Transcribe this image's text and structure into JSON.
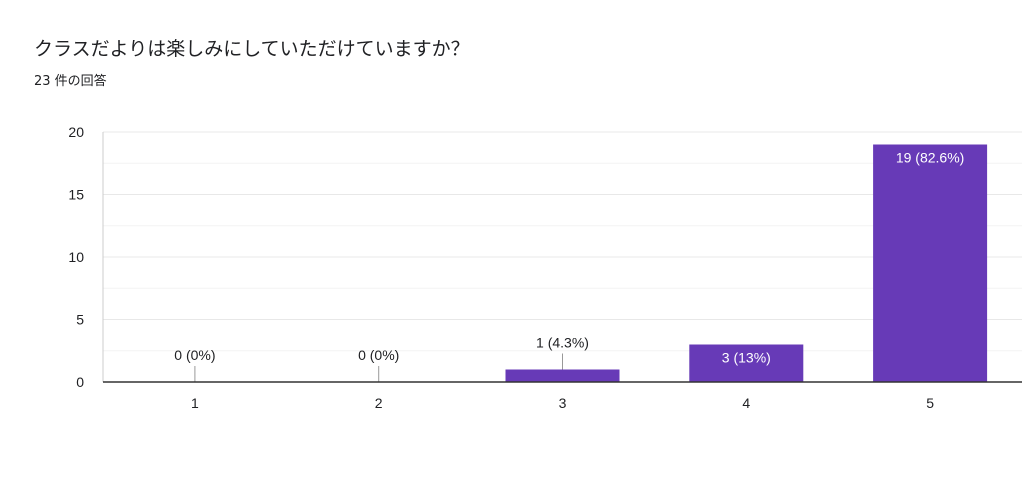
{
  "question": {
    "title": "クラスだよりは楽しみにしていただけていますか？",
    "response_count": "23 件の回答"
  },
  "colors": {
    "bar": "#673ab7",
    "grid": "#e8e8e8",
    "axis": "#333333",
    "text": "#202124"
  },
  "chart_data": {
    "type": "bar",
    "categories": [
      "1",
      "2",
      "3",
      "4",
      "5"
    ],
    "values": [
      0,
      0,
      1,
      3,
      19
    ],
    "data_labels": [
      "0 (0%)",
      "0 (0%)",
      "1 (4.3%)",
      "3 (13%)",
      "19 (82.6%)"
    ],
    "yticks": [
      0,
      5,
      10,
      15,
      20
    ],
    "ylim": [
      0,
      20
    ],
    "grid": true,
    "legend": "none",
    "title": "",
    "xlabel": "",
    "ylabel": ""
  }
}
